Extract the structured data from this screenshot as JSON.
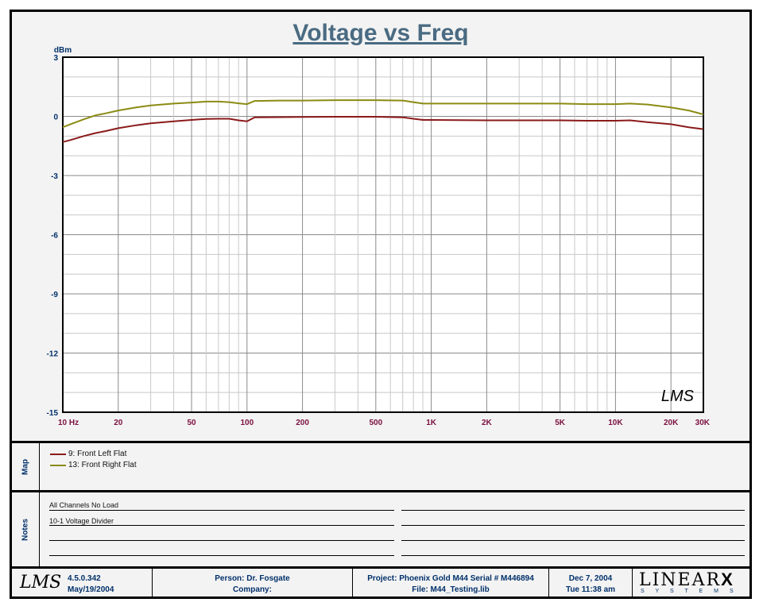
{
  "chart_data": {
    "type": "line",
    "title": "Voltage vs Freq",
    "ylabel": "dBm",
    "xscale": "log",
    "xlim": [
      10,
      30000
    ],
    "ylim": [
      -15,
      3
    ],
    "ytick_values": [
      3,
      0,
      -3,
      -6,
      -9,
      -12,
      -15
    ],
    "ytick_labels": [
      "3",
      "0",
      "-3",
      "-6",
      "-9",
      "-12",
      "-15"
    ],
    "xtick_values": [
      10,
      20,
      50,
      100,
      200,
      500,
      1000,
      2000,
      5000,
      10000,
      20000,
      30000
    ],
    "xtick_labels": [
      "10  Hz",
      "20",
      "50",
      "100",
      "200",
      "500",
      "1K",
      "2K",
      "5K",
      "10K",
      "20K",
      "30K"
    ],
    "grid": true,
    "series": [
      {
        "name": "9: Front Left Flat",
        "color": "#8b1a1a",
        "x": [
          10,
          11,
          13,
          15,
          17,
          20,
          25,
          30,
          40,
          50,
          60,
          70,
          80,
          90,
          100,
          110,
          150,
          200,
          300,
          500,
          700,
          800,
          900,
          1000,
          2000,
          5000,
          7000,
          10000,
          12000,
          15000,
          20000,
          25000,
          30000
        ],
        "y": [
          -1.3,
          -1.2,
          -1.0,
          -0.85,
          -0.75,
          -0.6,
          -0.45,
          -0.35,
          -0.25,
          -0.18,
          -0.13,
          -0.12,
          -0.12,
          -0.2,
          -0.25,
          -0.05,
          -0.04,
          -0.03,
          -0.02,
          -0.02,
          -0.05,
          -0.12,
          -0.18,
          -0.18,
          -0.2,
          -0.2,
          -0.22,
          -0.22,
          -0.2,
          -0.3,
          -0.4,
          -0.55,
          -0.65
        ]
      },
      {
        "name": "13: Front Right Flat",
        "color": "#8b8b14",
        "x": [
          10,
          11,
          13,
          15,
          17,
          20,
          25,
          30,
          40,
          50,
          60,
          70,
          80,
          90,
          100,
          110,
          150,
          200,
          300,
          500,
          700,
          800,
          900,
          1000,
          2000,
          5000,
          7000,
          10000,
          12000,
          15000,
          20000,
          25000,
          30000
        ],
        "y": [
          -0.55,
          -0.4,
          -0.15,
          0.05,
          0.15,
          0.3,
          0.45,
          0.55,
          0.65,
          0.7,
          0.75,
          0.75,
          0.72,
          0.66,
          0.62,
          0.78,
          0.8,
          0.8,
          0.82,
          0.82,
          0.8,
          0.72,
          0.65,
          0.65,
          0.65,
          0.65,
          0.62,
          0.62,
          0.65,
          0.6,
          0.45,
          0.3,
          0.1
        ]
      }
    ],
    "watermark": "LMS"
  },
  "map": {
    "label": "Map",
    "items": [
      {
        "text": "9: Front Left Flat",
        "color": "#8b1a1a"
      },
      {
        "text": "13: Front Right Flat",
        "color": "#8b8b14"
      }
    ]
  },
  "notes": {
    "label": "Notes",
    "lines": [
      "All Channels No Load",
      "10-1 Voltage Divider"
    ]
  },
  "footer": {
    "logo": "LMS",
    "version": "4.5.0.342",
    "date": "May/19/2004",
    "person": "Person: Dr. Fosgate",
    "company": "Company:",
    "project": "Project: Phoenix Gold M44 Serial # M446894",
    "file": "File: M44_Testing.lib",
    "print_date": "Dec  7, 2004",
    "print_time": "Tue 11:38 am",
    "brand_main": "LINEAR",
    "brand_x": "X",
    "brand_sub": "S Y S T E M S"
  }
}
